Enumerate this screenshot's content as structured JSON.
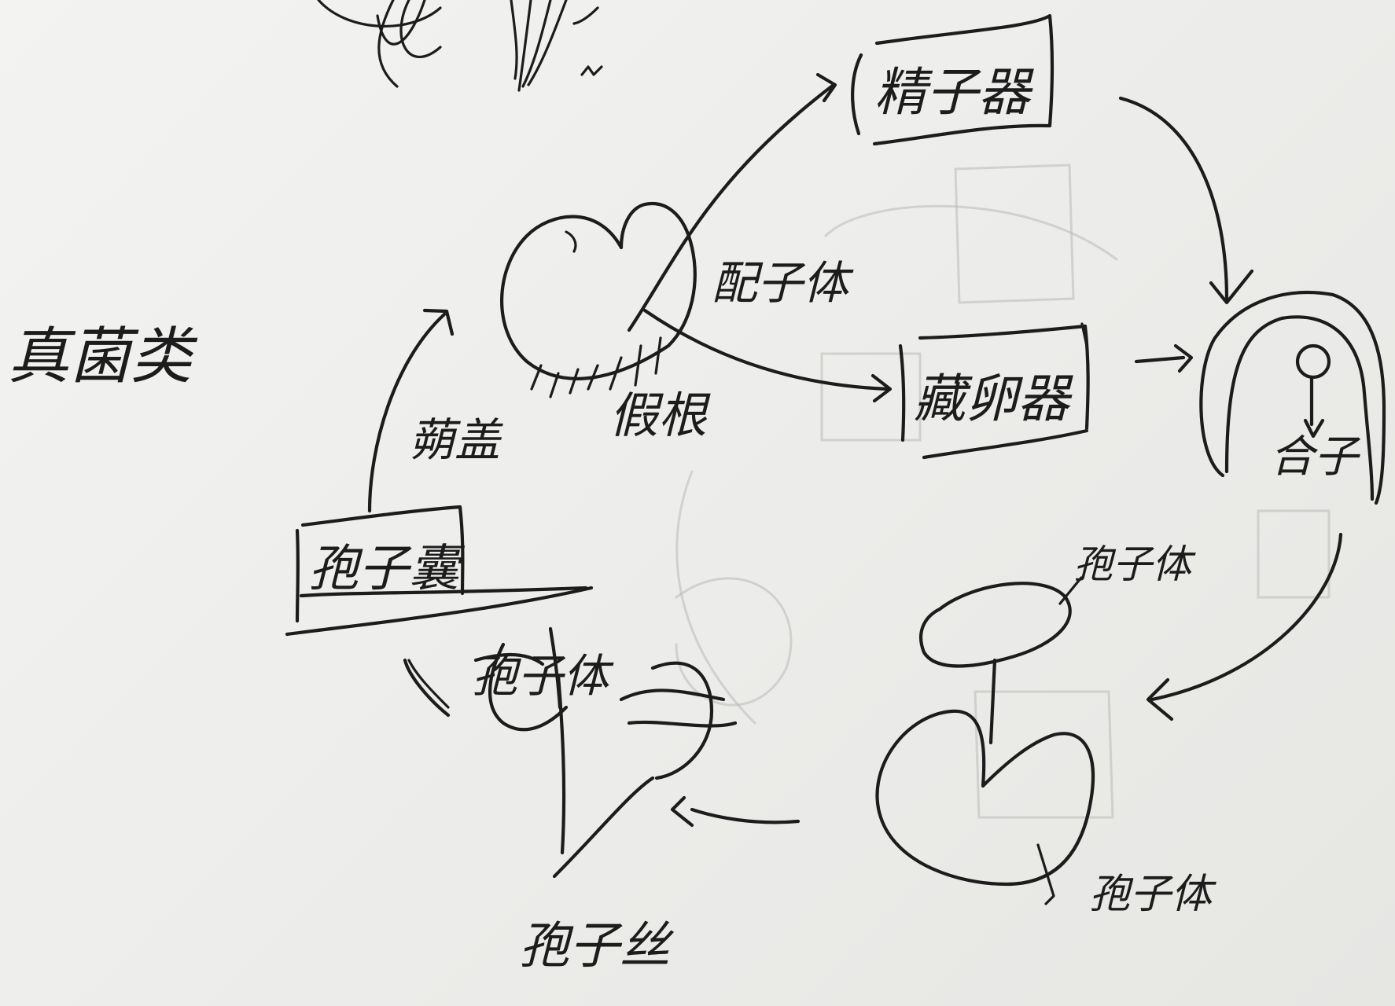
{
  "diagram": {
    "title": "真菌类",
    "nodes": {
      "sperm_organ": "精子器",
      "egg_organ": "藏卵器",
      "sporangium": "孢子囊",
      "gametophyte": "配子体",
      "rhizoid": "假根",
      "stomium": "蒴盖",
      "zygote": "合子",
      "spore_body": "孢子体",
      "sporophyte_footnote": "孢子体",
      "germling": "孢子体",
      "mycelium": "孢子丝"
    }
  }
}
